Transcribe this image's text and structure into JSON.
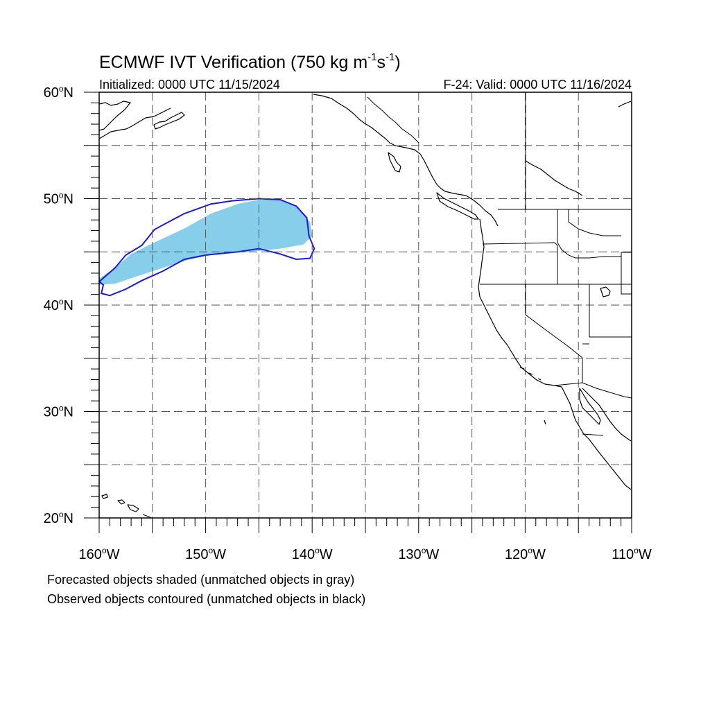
{
  "title": {
    "main": "ECMWF IVT Verification (750 kg m",
    "sup1": "-1",
    "mid": "s",
    "sup2": "-1",
    "close": ")"
  },
  "initialized": "Initialized: 0000 UTC 11/15/2024",
  "valid": "F-24: Valid: 0000 UTC 11/16/2024",
  "axes": {
    "lon_range": [
      -160,
      -110
    ],
    "lat_range": [
      20,
      60
    ],
    "x_ticks": [
      {
        "value": -160,
        "num": "160",
        "dir": "W"
      },
      {
        "value": -150,
        "num": "150",
        "dir": "W"
      },
      {
        "value": -140,
        "num": "140",
        "dir": "W"
      },
      {
        "value": -130,
        "num": "130",
        "dir": "W"
      },
      {
        "value": -120,
        "num": "120",
        "dir": "W"
      },
      {
        "value": -110,
        "num": "110",
        "dir": "W"
      }
    ],
    "y_ticks": [
      {
        "value": 60,
        "num": "60",
        "dir": "N"
      },
      {
        "value": 50,
        "num": "50",
        "dir": "N"
      },
      {
        "value": 40,
        "num": "40",
        "dir": "N"
      },
      {
        "value": 30,
        "num": "30",
        "dir": "N"
      },
      {
        "value": 20,
        "num": "20",
        "dir": "N"
      }
    ],
    "grid_spacing_deg": 5,
    "grid": true
  },
  "colors": {
    "forecast_fill": "#87ceeb",
    "observed_contour": "#1a1adb",
    "coastline": "#000000",
    "gridline": "#555555"
  },
  "objects": {
    "forecast_shaded": {
      "color": "#87ceeb",
      "outline_lonlat": [
        [
          -160,
          42.5
        ],
        [
          -158.5,
          43.5
        ],
        [
          -157,
          44.8
        ],
        [
          -155,
          45.8
        ],
        [
          -152,
          47.2
        ],
        [
          -149.5,
          48.6
        ],
        [
          -147,
          49.5
        ],
        [
          -145,
          49.9
        ],
        [
          -143,
          50.0
        ],
        [
          -141.5,
          49.3
        ],
        [
          -140.2,
          47.8
        ],
        [
          -140.0,
          46.5
        ],
        [
          -140.8,
          45.7
        ],
        [
          -143,
          45.3
        ],
        [
          -146,
          45.0
        ],
        [
          -149,
          44.8
        ],
        [
          -151.5,
          44.3
        ],
        [
          -154,
          43.5
        ],
        [
          -156.5,
          42.7
        ],
        [
          -158.5,
          42.0
        ],
        [
          -160,
          41.9
        ]
      ]
    },
    "observed_contour": {
      "color": "#1a1adb",
      "outline_lonlat": [
        [
          -160,
          42.2
        ],
        [
          -158.5,
          43.5
        ],
        [
          -157.5,
          44.7
        ],
        [
          -156,
          45.6
        ],
        [
          -154.8,
          47.1
        ],
        [
          -153.5,
          47.8
        ],
        [
          -152,
          48.6
        ],
        [
          -149.5,
          49.5
        ],
        [
          -147.5,
          49.8
        ],
        [
          -145,
          50.0
        ],
        [
          -143,
          49.9
        ],
        [
          -141.5,
          49.3
        ],
        [
          -140.5,
          48.2
        ],
        [
          -140.3,
          46.5
        ],
        [
          -139.8,
          45.3
        ],
        [
          -140.2,
          44.4
        ],
        [
          -141.5,
          44.3
        ],
        [
          -143,
          44.8
        ],
        [
          -145,
          45.3
        ],
        [
          -147,
          45.0
        ],
        [
          -150,
          44.7
        ],
        [
          -152,
          44.3
        ],
        [
          -154,
          43.2
        ],
        [
          -156,
          42.3
        ],
        [
          -157.5,
          41.5
        ],
        [
          -159,
          40.9
        ],
        [
          -159.8,
          41.1
        ],
        [
          -159.6,
          41.9
        ],
        [
          -160,
          42.2
        ]
      ]
    }
  },
  "legend_notes": [
    "Forecasted objects shaded (unmatched objects in gray)",
    "Observed objects contoured (unmatched objects in black)"
  ]
}
